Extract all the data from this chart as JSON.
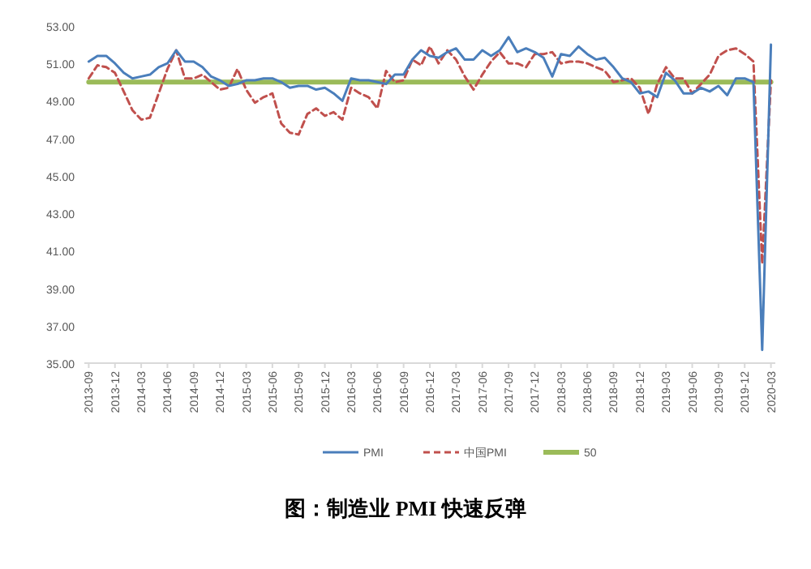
{
  "chart_data": {
    "type": "line",
    "title": "图：制造业 PMI 快速反弹",
    "categories": [
      "2013-09",
      null,
      null,
      "2013-12",
      null,
      null,
      "2014-03",
      null,
      null,
      "2014-06",
      null,
      null,
      "2014-09",
      null,
      null,
      "2014-12",
      null,
      null,
      "2015-03",
      null,
      null,
      "2015-06",
      null,
      null,
      "2015-09",
      null,
      null,
      "2015-12",
      null,
      null,
      "2016-03",
      null,
      null,
      "2016-06",
      null,
      null,
      "2016-09",
      null,
      null,
      "2016-12",
      null,
      null,
      "2017-03",
      null,
      null,
      "2017-06",
      null,
      null,
      "2017-09",
      null,
      null,
      "2017-12",
      null,
      null,
      "2018-03",
      null,
      null,
      "2018-06",
      null,
      null,
      "2018-09",
      null,
      null,
      "2018-12",
      null,
      null,
      "2019-03",
      null,
      null,
      "2019-06",
      null,
      null,
      "2019-09",
      null,
      null,
      "2019-12",
      null,
      null,
      "2020-03"
    ],
    "series": [
      {
        "name": "PMI",
        "color": "#4a7ebb",
        "line_style": "solid",
        "values": [
          51.1,
          51.4,
          51.4,
          51.0,
          50.5,
          50.2,
          50.3,
          50.4,
          50.8,
          51.0,
          51.7,
          51.1,
          51.1,
          50.8,
          50.3,
          50.1,
          49.8,
          49.9,
          50.1,
          50.1,
          50.2,
          50.2,
          50.0,
          49.7,
          49.8,
          49.8,
          49.6,
          49.7,
          49.4,
          49.0,
          50.2,
          50.1,
          50.1,
          50.0,
          49.9,
          50.4,
          50.4,
          51.2,
          51.7,
          51.4,
          51.3,
          51.6,
          51.8,
          51.2,
          51.2,
          51.7,
          51.4,
          51.7,
          52.4,
          51.6,
          51.8,
          51.6,
          51.3,
          50.3,
          51.5,
          51.4,
          51.9,
          51.5,
          51.2,
          51.3,
          50.8,
          50.2,
          50.0,
          49.4,
          49.5,
          49.2,
          50.5,
          50.1,
          49.4,
          49.4,
          49.7,
          49.5,
          49.8,
          49.3,
          50.2,
          50.2,
          50.0,
          35.7,
          52.0
        ]
      },
      {
        "name": "中国PMI",
        "color": "#c0504d",
        "line_style": "dashed",
        "values": [
          50.2,
          50.9,
          50.8,
          50.5,
          49.5,
          48.5,
          48.0,
          48.1,
          49.4,
          50.7,
          51.7,
          50.2,
          50.2,
          50.4,
          50.0,
          49.6,
          49.7,
          50.7,
          49.6,
          48.9,
          49.2,
          49.4,
          47.8,
          47.3,
          47.2,
          48.3,
          48.6,
          48.2,
          48.4,
          48.0,
          49.7,
          49.4,
          49.2,
          48.6,
          50.6,
          50.0,
          50.1,
          51.2,
          50.9,
          51.9,
          51.0,
          51.7,
          51.2,
          50.3,
          49.6,
          50.4,
          51.1,
          51.6,
          51.0,
          51.0,
          50.8,
          51.5,
          51.5,
          51.6,
          51.0,
          51.1,
          51.1,
          51.0,
          50.8,
          50.6,
          50.0,
          50.1,
          50.2,
          49.7,
          48.3,
          49.9,
          50.8,
          50.2,
          50.2,
          49.4,
          49.9,
          50.4,
          51.4,
          51.7,
          51.8,
          51.5,
          51.1,
          40.3,
          50.1
        ]
      },
      {
        "name": "50",
        "color": "#9bbb59",
        "line_style": "solid",
        "values": [
          50,
          50,
          50,
          50,
          50,
          50,
          50,
          50,
          50,
          50,
          50,
          50,
          50,
          50,
          50,
          50,
          50,
          50,
          50,
          50,
          50,
          50,
          50,
          50,
          50,
          50,
          50,
          50,
          50,
          50,
          50,
          50,
          50,
          50,
          50,
          50,
          50,
          50,
          50,
          50,
          50,
          50,
          50,
          50,
          50,
          50,
          50,
          50,
          50,
          50,
          50,
          50,
          50,
          50,
          50,
          50,
          50,
          50,
          50,
          50,
          50,
          50,
          50,
          50,
          50,
          50,
          50,
          50,
          50,
          50,
          50,
          50,
          50,
          50,
          50,
          50,
          50,
          50,
          50
        ]
      }
    ],
    "ylim": [
      35,
      53
    ],
    "yticks": [
      {
        "value": 35,
        "label": "35.00"
      },
      {
        "value": 37,
        "label": "37.00"
      },
      {
        "value": 39,
        "label": "39.00"
      },
      {
        "value": 41,
        "label": "41.00"
      },
      {
        "value": 43,
        "label": "43.00"
      },
      {
        "value": 45,
        "label": "45.00"
      },
      {
        "value": 47,
        "label": "47.00"
      },
      {
        "value": 49,
        "label": "49.00"
      },
      {
        "value": 51,
        "label": "51.00"
      },
      {
        "value": 53,
        "label": "53.00"
      }
    ],
    "marker": "none",
    "legend": "bottom",
    "grid": false
  }
}
